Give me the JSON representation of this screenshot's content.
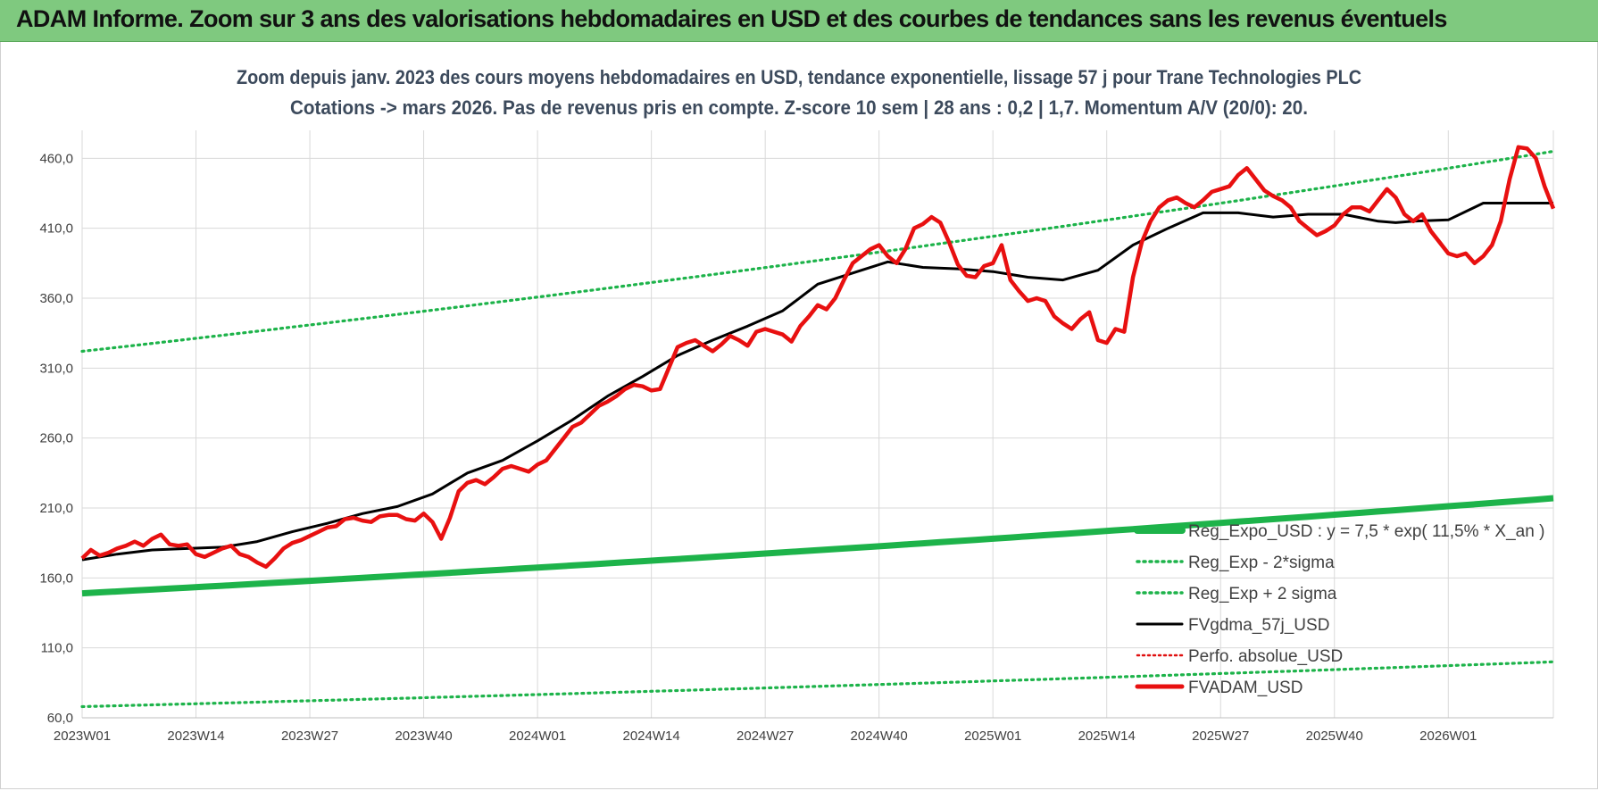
{
  "header": {
    "title": "ADAM Informe. Zoom sur 3 ans des valorisations hebdomadaires en USD et des courbes de tendances sans les revenus éventuels"
  },
  "colors": {
    "banner": "#7fc97f",
    "regexpo": "#1db34a",
    "sigma": "#1db34a",
    "fvgdma": "#000000",
    "perfo": "#e01010",
    "fvadam": "#e81010",
    "grid": "#d9d9d9"
  },
  "chart_data": {
    "type": "line",
    "subtitle_line1": "Zoom depuis janv. 2023 des cours moyens hebdomadaires en USD, tendance exponentielle, lissage 57 j pour Trane Technologies PLC",
    "subtitle_line2": "Cotations -> mars 2026. Pas de revenus pris en compte. Z-score 10 sem | 28 ans : 0,2 | 1,7. Momentum A/V (20/0): 20.",
    "ylim": [
      60,
      480
    ],
    "yticks": [
      "60,0",
      "110,0",
      "160,0",
      "210,0",
      "260,0",
      "310,0",
      "360,0",
      "410,0",
      "460,0"
    ],
    "yticks_values": [
      60,
      110,
      160,
      210,
      260,
      310,
      360,
      410,
      460
    ],
    "xlim": [
      0,
      168
    ],
    "xticks": [
      "2023W01",
      "2023W14",
      "2023W27",
      "2023W40",
      "2024W01",
      "2024W14",
      "2024W27",
      "2024W40",
      "2025W01",
      "2025W14",
      "2025W27",
      "2025W40",
      "2026W01"
    ],
    "xticks_values": [
      0,
      13,
      26,
      39,
      52,
      65,
      78,
      91,
      104,
      117,
      130,
      143,
      156
    ],
    "legend_position": "lower-right",
    "grid": true,
    "series": [
      {
        "name": "Reg_Expo_USD : y = 7,5 * exp( 11,5% *  X_an )",
        "style": "thick",
        "x": [
          0,
          168
        ],
        "y_start": 149.0,
        "y_end": 217.0
      },
      {
        "name": "Reg_Exp - 2*sigma",
        "style": "dotted",
        "y_start": 68.0,
        "y_end": 100.0
      },
      {
        "name": "Reg_Exp + 2 sigma",
        "style": "dotted",
        "y_start": 322.0,
        "y_end": 465.0
      },
      {
        "name": "FVgdma_57j_USD",
        "style": "solid-thin",
        "x": [
          0,
          4,
          8,
          12,
          16,
          20,
          24,
          28,
          32,
          36,
          40,
          44,
          48,
          52,
          56,
          60,
          64,
          68,
          72,
          76,
          80,
          84,
          88,
          92,
          96,
          100,
          104,
          108,
          112,
          116,
          120,
          124,
          128,
          132,
          136,
          140,
          144,
          148,
          150,
          152,
          156,
          160,
          164,
          168
        ],
        "y": [
          173,
          177,
          180,
          181,
          182,
          186,
          193,
          199,
          206,
          211,
          220,
          235,
          244,
          258,
          273,
          290,
          304,
          319,
          330,
          340,
          351,
          370,
          378,
          386,
          382,
          381,
          379,
          375,
          373,
          380,
          398,
          410,
          421,
          421,
          418,
          420,
          420,
          415,
          414,
          415,
          416,
          428,
          428,
          428
        ]
      },
      {
        "name": "Perfo. absolue_USD",
        "style": "dotted-red"
      },
      {
        "name": "FVADAM_USD",
        "style": "thick-red",
        "x": [
          0,
          1,
          2,
          3,
          4,
          5,
          6,
          7,
          8,
          9,
          10,
          11,
          12,
          13,
          14,
          15,
          16,
          17,
          18,
          19,
          20,
          21,
          22,
          23,
          24,
          25,
          26,
          27,
          28,
          29,
          30,
          31,
          32,
          33,
          34,
          35,
          36,
          37,
          38,
          39,
          40,
          41,
          42,
          43,
          44,
          45,
          46,
          47,
          48,
          49,
          50,
          51,
          52,
          53,
          54,
          55,
          56,
          57,
          58,
          59,
          60,
          61,
          62,
          63,
          64,
          65,
          66,
          67,
          68,
          69,
          70,
          71,
          72,
          73,
          74,
          75,
          76,
          77,
          78,
          79,
          80,
          81,
          82,
          83,
          84,
          85,
          86,
          87,
          88,
          89,
          90,
          91,
          92,
          93,
          94,
          95,
          96,
          97,
          98,
          99,
          100,
          101,
          102,
          103,
          104,
          105,
          106,
          107,
          108,
          109,
          110,
          111,
          112,
          113,
          114,
          115,
          116,
          117,
          118,
          119,
          120,
          121,
          122,
          123,
          124,
          125,
          126,
          127,
          128,
          129,
          130,
          131,
          132,
          133,
          134,
          135,
          136,
          137,
          138,
          139,
          140,
          141,
          142,
          143,
          144,
          145,
          146,
          147,
          148,
          149,
          150,
          151,
          152,
          153,
          154,
          155,
          156,
          157,
          158,
          159,
          160,
          161,
          162,
          163,
          164,
          165,
          166,
          167,
          168
        ],
        "y": [
          174,
          180,
          176,
          178,
          181,
          183,
          186,
          183,
          188,
          191,
          184,
          183,
          184,
          177,
          175,
          178,
          181,
          183,
          177,
          175,
          171,
          168,
          174,
          181,
          185,
          187,
          190,
          193,
          196,
          197,
          202,
          203,
          201,
          200,
          204,
          205,
          205,
          202,
          201,
          206,
          200,
          188,
          203,
          222,
          228,
          230,
          227,
          232,
          238,
          240,
          238,
          236,
          241,
          244,
          252,
          260,
          268,
          271,
          277,
          283,
          286,
          290,
          295,
          298,
          297,
          294,
          295,
          310,
          325,
          328,
          330,
          326,
          322,
          327,
          333,
          330,
          326,
          336,
          338,
          336,
          334,
          329,
          340,
          347,
          355,
          352,
          360,
          373,
          385,
          390,
          395,
          398,
          390,
          385,
          395,
          410,
          413,
          418,
          414,
          400,
          384,
          376,
          375,
          383,
          385,
          398,
          373,
          365,
          358,
          360,
          358,
          347,
          342,
          338,
          345,
          350,
          330,
          328,
          338,
          336,
          375,
          400,
          415,
          425,
          430,
          432,
          428,
          425,
          430,
          436,
          438,
          440,
          448,
          453,
          445,
          437,
          433,
          430,
          425,
          415,
          410,
          405,
          408,
          412,
          420,
          425,
          425,
          422,
          430,
          438,
          432,
          420,
          415,
          420,
          408,
          400,
          392,
          390,
          392,
          385,
          390,
          398,
          415,
          445,
          468,
          467,
          460,
          440,
          424
        ]
      }
    ]
  }
}
